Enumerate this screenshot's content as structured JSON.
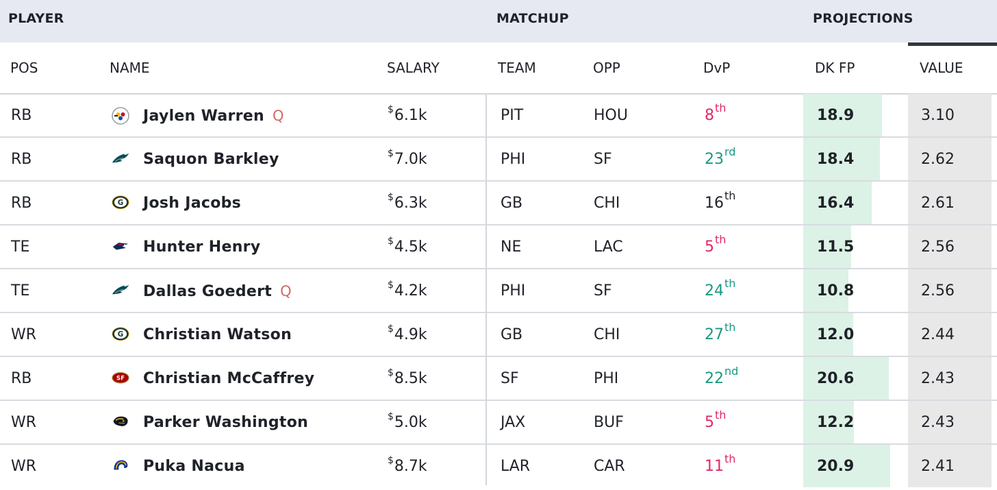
{
  "groups": {
    "player": "PLAYER",
    "matchup": "MATCHUP",
    "projections": "PROJECTIONS"
  },
  "columns": {
    "pos": "POS",
    "name": "NAME",
    "salary": "SALARY",
    "team": "TEAM",
    "opp": "OPP",
    "dvp": "DvP",
    "dkfp": "DK FP",
    "value": "VALUE"
  },
  "colors": {
    "dvp_bad": "#e0286b",
    "dvp_good": "#1a9882",
    "dvp_neutral": "#1f2229",
    "questionable": "#d26a6a",
    "fp_bar": "#dcf2e6",
    "value_bg": "#e8e8e8"
  },
  "fp_bar_scale_max": 25,
  "players": [
    {
      "pos": "RB",
      "team_icon": "steelers-logo-icon",
      "name": "Jaylen Warren",
      "status": "Q",
      "salary_symbol": "$",
      "salary": "6.1k",
      "team": "PIT",
      "opp": "HOU",
      "dvp_rank": "8",
      "dvp_suffix": "th",
      "dvp_tone": "bad",
      "dk_fp": 18.9,
      "dk_fp_text": "18.9",
      "value": "3.10"
    },
    {
      "pos": "RB",
      "team_icon": "eagles-logo-icon",
      "name": "Saquon Barkley",
      "status": "",
      "salary_symbol": "$",
      "salary": "7.0k",
      "team": "PHI",
      "opp": "SF",
      "dvp_rank": "23",
      "dvp_suffix": "rd",
      "dvp_tone": "good",
      "dk_fp": 18.4,
      "dk_fp_text": "18.4",
      "value": "2.62"
    },
    {
      "pos": "RB",
      "team_icon": "packers-logo-icon",
      "name": "Josh Jacobs",
      "status": "",
      "salary_symbol": "$",
      "salary": "6.3k",
      "team": "GB",
      "opp": "CHI",
      "dvp_rank": "16",
      "dvp_suffix": "th",
      "dvp_tone": "neutral",
      "dk_fp": 16.4,
      "dk_fp_text": "16.4",
      "value": "2.61"
    },
    {
      "pos": "TE",
      "team_icon": "patriots-logo-icon",
      "name": "Hunter Henry",
      "status": "",
      "salary_symbol": "$",
      "salary": "4.5k",
      "team": "NE",
      "opp": "LAC",
      "dvp_rank": "5",
      "dvp_suffix": "th",
      "dvp_tone": "bad",
      "dk_fp": 11.5,
      "dk_fp_text": "11.5",
      "value": "2.56"
    },
    {
      "pos": "TE",
      "team_icon": "eagles-logo-icon",
      "name": "Dallas Goedert",
      "status": "Q",
      "salary_symbol": "$",
      "salary": "4.2k",
      "team": "PHI",
      "opp": "SF",
      "dvp_rank": "24",
      "dvp_suffix": "th",
      "dvp_tone": "good",
      "dk_fp": 10.8,
      "dk_fp_text": "10.8",
      "value": "2.56"
    },
    {
      "pos": "WR",
      "team_icon": "packers-logo-icon",
      "name": "Christian Watson",
      "status": "",
      "salary_symbol": "$",
      "salary": "4.9k",
      "team": "GB",
      "opp": "CHI",
      "dvp_rank": "27",
      "dvp_suffix": "th",
      "dvp_tone": "good",
      "dk_fp": 12.0,
      "dk_fp_text": "12.0",
      "value": "2.44"
    },
    {
      "pos": "RB",
      "team_icon": "49ers-logo-icon",
      "name": "Christian McCaffrey",
      "status": "",
      "salary_symbol": "$",
      "salary": "8.5k",
      "team": "SF",
      "opp": "PHI",
      "dvp_rank": "22",
      "dvp_suffix": "nd",
      "dvp_tone": "good",
      "dk_fp": 20.6,
      "dk_fp_text": "20.6",
      "value": "2.43"
    },
    {
      "pos": "WR",
      "team_icon": "jaguars-logo-icon",
      "name": "Parker Washington",
      "status": "",
      "salary_symbol": "$",
      "salary": "5.0k",
      "team": "JAX",
      "opp": "BUF",
      "dvp_rank": "5",
      "dvp_suffix": "th",
      "dvp_tone": "bad",
      "dk_fp": 12.2,
      "dk_fp_text": "12.2",
      "value": "2.43"
    },
    {
      "pos": "WR",
      "team_icon": "rams-logo-icon",
      "name": "Puka Nacua",
      "status": "",
      "salary_symbol": "$",
      "salary": "8.7k",
      "team": "LAR",
      "opp": "CAR",
      "dvp_rank": "11",
      "dvp_suffix": "th",
      "dvp_tone": "bad",
      "dk_fp": 20.9,
      "dk_fp_text": "20.9",
      "value": "2.41"
    }
  ]
}
